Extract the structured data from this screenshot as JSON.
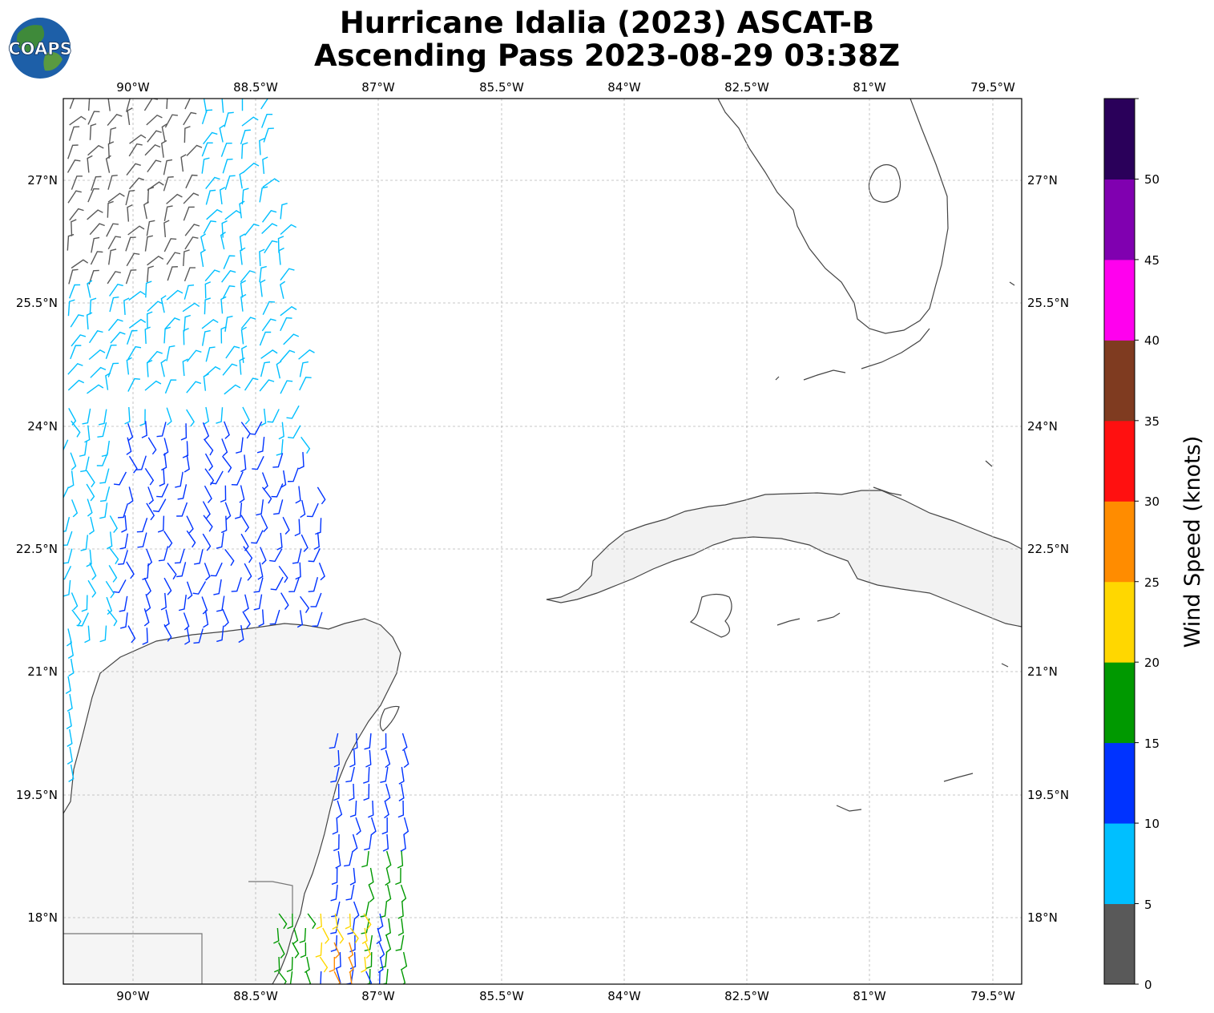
{
  "header": {
    "logo_text": "COAPS",
    "title_line1": "Hurricane Idalia (2023) ASCAT-B",
    "title_line2": "Ascending Pass 2023-08-29 03:38Z"
  },
  "map": {
    "lon_labels": [
      "90°W",
      "88.5°W",
      "87°W",
      "85.5°W",
      "84°W",
      "82.5°W",
      "81°W",
      "79.5°W"
    ],
    "lat_labels": [
      "27°N",
      "25.5°N",
      "24°N",
      "22.5°N",
      "21°N",
      "19.5°N",
      "18°N"
    ],
    "coastline_color": "#444444",
    "land_color": "#f4f4f4",
    "gridline_color": "#b0b0b0"
  },
  "colorbar": {
    "label": "Wind Speed (knots)",
    "ticks": [
      "0",
      "5",
      "10",
      "15",
      "20",
      "25",
      "30",
      "35",
      "40",
      "45",
      "50"
    ],
    "colors": [
      "#595959",
      "#00bfff",
      "#0033ff",
      "#009900",
      "#ffd700",
      "#ff8c00",
      "#ff1010",
      "#7f3b20",
      "#ff00ee",
      "#8000b0",
      "#2a005a"
    ]
  }
}
